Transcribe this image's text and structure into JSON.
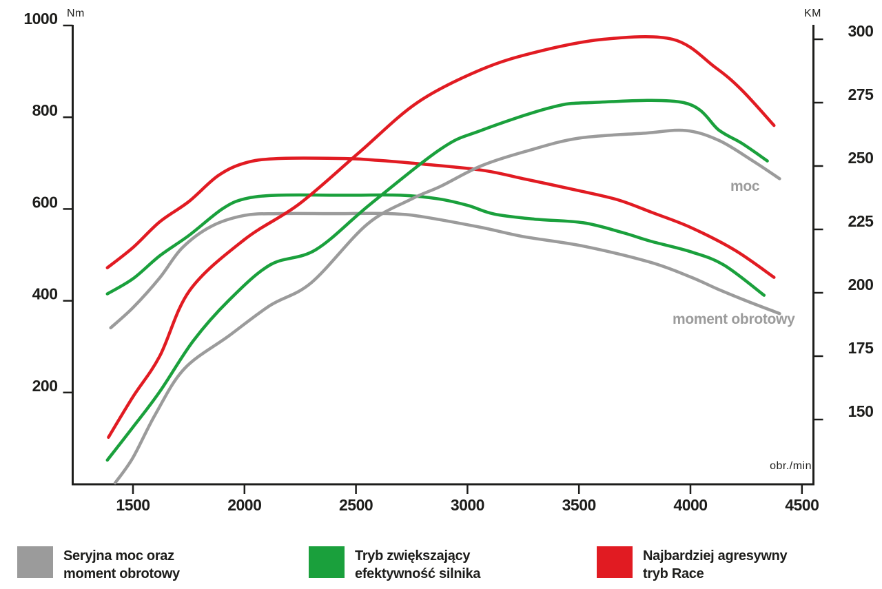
{
  "chart_data": {
    "type": "line",
    "title": "",
    "x_axis": {
      "label": "obr./min",
      "ticks": [
        1500,
        2000,
        2500,
        3000,
        3500,
        4000,
        4500
      ],
      "range": [
        1230,
        4550
      ]
    },
    "y_axis_left": {
      "label": "Nm",
      "ticks": [
        200,
        400,
        600,
        800,
        1000
      ],
      "range": [
        0,
        1010
      ]
    },
    "y_axis_right": {
      "label": "KM",
      "ticks": [
        150,
        175,
        200,
        225,
        250,
        275,
        300
      ],
      "range": [
        122,
        306
      ]
    },
    "curve_labels": {
      "power": "moc",
      "torque": "moment obrotowy"
    },
    "series": [
      {
        "id": "stock-torque",
        "name": "Seryjna moc oraz moment obrotowy",
        "quantity": "moment obrotowy",
        "axis": "left",
        "unit": "Nm",
        "color": "#9b9b9b",
        "points": [
          [
            1400,
            341
          ],
          [
            1500,
            385
          ],
          [
            1620,
            450
          ],
          [
            1720,
            515
          ],
          [
            1850,
            562
          ],
          [
            2000,
            586
          ],
          [
            2150,
            590
          ],
          [
            2400,
            590
          ],
          [
            2650,
            590
          ],
          [
            2800,
            583
          ],
          [
            3060,
            560
          ],
          [
            3250,
            540
          ],
          [
            3520,
            519
          ],
          [
            3820,
            484
          ],
          [
            4000,
            452
          ],
          [
            4120,
            426
          ],
          [
            4250,
            400
          ],
          [
            4400,
            372
          ]
        ]
      },
      {
        "id": "eco-torque",
        "name": "Tryb zwiększający efektywność silnika",
        "quantity": "moment obrotowy",
        "axis": "left",
        "unit": "Nm",
        "color": "#1aa03c",
        "points": [
          [
            1385,
            415
          ],
          [
            1500,
            448
          ],
          [
            1620,
            498
          ],
          [
            1750,
            542
          ],
          [
            1900,
            600
          ],
          [
            2000,
            622
          ],
          [
            2150,
            630
          ],
          [
            2450,
            630
          ],
          [
            2700,
            630
          ],
          [
            2870,
            622
          ],
          [
            3000,
            608
          ],
          [
            3120,
            589
          ],
          [
            3300,
            578
          ],
          [
            3520,
            570
          ],
          [
            3700,
            548
          ],
          [
            3820,
            530
          ],
          [
            4000,
            507
          ],
          [
            4150,
            478
          ],
          [
            4330,
            412
          ]
        ]
      },
      {
        "id": "race-torque",
        "name": "Najbardziej agresywny tryb Race",
        "quantity": "moment obrotowy",
        "axis": "left",
        "unit": "Nm",
        "color": "#e11b22",
        "points": [
          [
            1385,
            472
          ],
          [
            1500,
            516
          ],
          [
            1620,
            572
          ],
          [
            1750,
            616
          ],
          [
            1880,
            672
          ],
          [
            2000,
            700
          ],
          [
            2150,
            710
          ],
          [
            2450,
            710
          ],
          [
            2600,
            706
          ],
          [
            2750,
            700
          ],
          [
            3060,
            685
          ],
          [
            3250,
            666
          ],
          [
            3500,
            640
          ],
          [
            3675,
            620
          ],
          [
            3830,
            592
          ],
          [
            4000,
            560
          ],
          [
            4200,
            510
          ],
          [
            4375,
            451
          ]
        ]
      },
      {
        "id": "stock-power",
        "name": "Seryjna moc oraz moment obrotowy",
        "quantity": "moc",
        "axis": "right",
        "unit": "KM",
        "color": "#9b9b9b",
        "points": [
          [
            1420,
            125
          ],
          [
            1500,
            135
          ],
          [
            1600,
            152
          ],
          [
            1730,
            170
          ],
          [
            1930,
            183
          ],
          [
            2115,
            195
          ],
          [
            2300,
            204
          ],
          [
            2550,
            227
          ],
          [
            2750,
            237
          ],
          [
            2880,
            242
          ],
          [
            3060,
            250
          ],
          [
            3270,
            256
          ],
          [
            3500,
            261
          ],
          [
            3800,
            263
          ],
          [
            3980,
            264
          ],
          [
            4130,
            260
          ],
          [
            4280,
            252
          ],
          [
            4400,
            245
          ]
        ]
      },
      {
        "id": "eco-power",
        "name": "Tryb zwiększający efektywność silnika",
        "quantity": "moc",
        "axis": "right",
        "unit": "KM",
        "color": "#1aa03c",
        "points": [
          [
            1385,
            134
          ],
          [
            1500,
            147
          ],
          [
            1620,
            161
          ],
          [
            1770,
            181
          ],
          [
            1930,
            197
          ],
          [
            2115,
            211
          ],
          [
            2320,
            217
          ],
          [
            2565,
            235
          ],
          [
            2885,
            257
          ],
          [
            3060,
            264
          ],
          [
            3370,
            273
          ],
          [
            3550,
            275
          ],
          [
            3970,
            275
          ],
          [
            4130,
            264
          ],
          [
            4230,
            259
          ],
          [
            4345,
            252
          ]
        ]
      },
      {
        "id": "race-power",
        "name": "Najbardziej agresywny tryb Race",
        "quantity": "moc",
        "axis": "right",
        "unit": "KM",
        "color": "#e11b22",
        "points": [
          [
            1390,
            143
          ],
          [
            1500,
            159
          ],
          [
            1620,
            175
          ],
          [
            1755,
            201
          ],
          [
            2000,
            221
          ],
          [
            2245,
            235
          ],
          [
            2510,
            255
          ],
          [
            2775,
            275
          ],
          [
            3060,
            288
          ],
          [
            3310,
            295
          ],
          [
            3610,
            300
          ],
          [
            3920,
            300
          ],
          [
            4110,
            289
          ],
          [
            4230,
            280
          ],
          [
            4375,
            266
          ]
        ]
      }
    ]
  },
  "legend": [
    {
      "color": "#9b9b9b",
      "line1": "Seryjna moc oraz",
      "line2": "moment obrotowy"
    },
    {
      "color": "#1aa03c",
      "line1": "Tryb zwiększający",
      "line2": "efektywność silnika"
    },
    {
      "color": "#e11b22",
      "line1": "Najbardziej agresywny",
      "line2": "tryb Race"
    }
  ]
}
